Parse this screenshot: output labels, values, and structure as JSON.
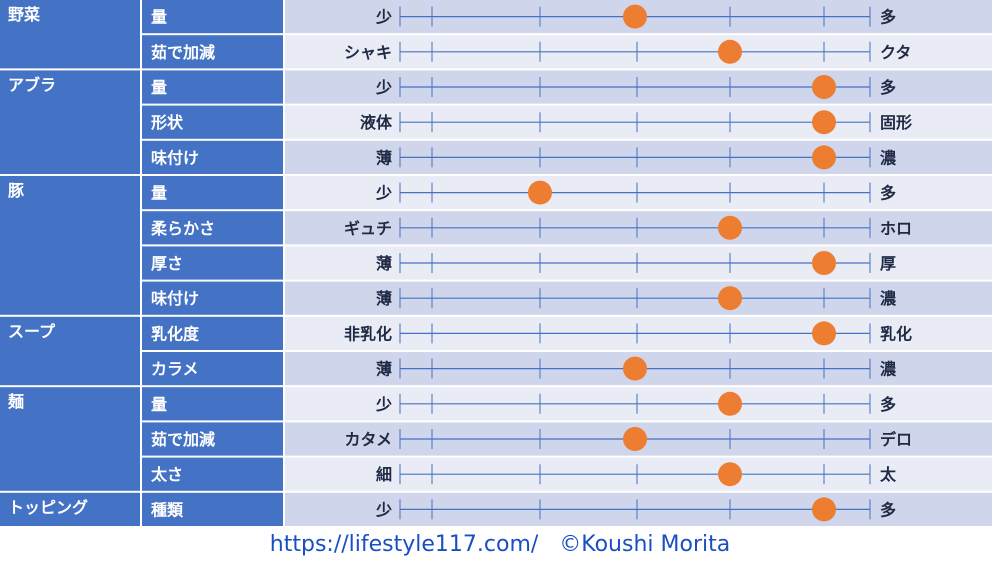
{
  "chart_data": {
    "type": "scatter",
    "scale_steps": 5,
    "groups": [
      {
        "name": "野菜",
        "rows": [
          {
            "label": "量",
            "left": "少",
            "right": "多",
            "value": 3
          },
          {
            "label": "茹で加減",
            "left": "シャキ",
            "right": "クタ",
            "value": 4
          }
        ]
      },
      {
        "name": "アブラ",
        "rows": [
          {
            "label": "量",
            "left": "少",
            "right": "多",
            "value": 5
          },
          {
            "label": "形状",
            "left": "液体",
            "right": "固形",
            "value": 5
          },
          {
            "label": "味付け",
            "left": "薄",
            "right": "濃",
            "value": 5
          }
        ]
      },
      {
        "name": "豚",
        "rows": [
          {
            "label": "量",
            "left": "少",
            "right": "多",
            "value": 2
          },
          {
            "label": "柔らかさ",
            "left": "ギュチ",
            "right": "ホロ",
            "value": 4
          },
          {
            "label": "厚さ",
            "left": "薄",
            "right": "厚",
            "value": 5
          },
          {
            "label": "味付け",
            "left": "薄",
            "right": "濃",
            "value": 4
          }
        ]
      },
      {
        "name": "スープ",
        "rows": [
          {
            "label": "乳化度",
            "left": "非乳化",
            "right": "乳化",
            "value": 5
          },
          {
            "label": "カラメ",
            "left": "薄",
            "right": "濃",
            "value": 3
          }
        ]
      },
      {
        "name": "麺",
        "rows": [
          {
            "label": "量",
            "left": "少",
            "right": "多",
            "value": 4
          },
          {
            "label": "茹で加減",
            "left": "カタメ",
            "right": "デロ",
            "value": 3
          },
          {
            "label": "太さ",
            "left": "細",
            "right": "太",
            "value": 4
          }
        ]
      },
      {
        "name": "トッピング",
        "rows": [
          {
            "label": "種類",
            "left": "少",
            "right": "多",
            "value": 5
          }
        ]
      }
    ]
  },
  "colors": {
    "label_bg": "#4472c4",
    "row_dark": "#cfd5ea",
    "row_light": "#e9ebf5",
    "line": "#4472c4",
    "dot": "#ed7d31",
    "dark_text": "#1f2a44",
    "white": "#ffffff"
  },
  "footer": "https://lifestyle117.com/   ©Koushi Morita"
}
